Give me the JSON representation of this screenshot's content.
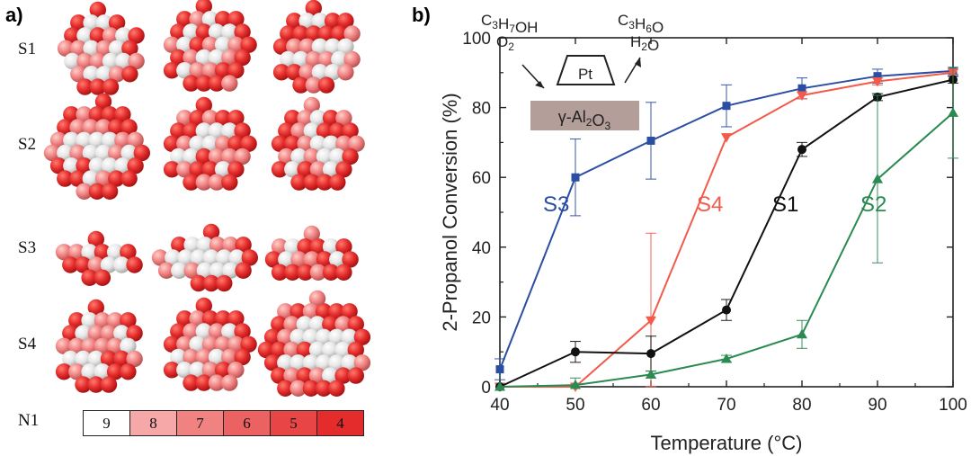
{
  "panel_a": {
    "label": "a)",
    "rows": [
      "S1",
      "S2",
      "S3",
      "S4"
    ],
    "legend_title": "N1",
    "legend": [
      {
        "value": "9",
        "color": "#ffffff"
      },
      {
        "value": "8",
        "color": "#f6a8a8"
      },
      {
        "value": "7",
        "color": "#f08282"
      },
      {
        "value": "6",
        "color": "#ec6262"
      },
      {
        "value": "5",
        "color": "#e84646"
      },
      {
        "value": "4",
        "color": "#e42c2c"
      }
    ]
  },
  "panel_b": {
    "label": "b)",
    "inset": {
      "reactants": [
        "C3H7OH",
        "O2"
      ],
      "products": [
        "C3H6O",
        "H2O"
      ],
      "catalyst": "Pt",
      "support": "γ-Al2O3"
    }
  },
  "chart_data": {
    "type": "line",
    "xlabel": "Temperature (°C)",
    "ylabel": "2-Propanol Conversion (%)",
    "x": [
      40,
      50,
      60,
      70,
      80,
      90,
      100
    ],
    "xlim": [
      40,
      100
    ],
    "ylim": [
      0,
      100
    ],
    "xticks": [
      40,
      50,
      60,
      70,
      80,
      90,
      100
    ],
    "yticks": [
      0,
      20,
      40,
      60,
      80,
      100
    ],
    "grid": false,
    "series": [
      {
        "name": "S3",
        "color": "#2b4ea3",
        "marker": "square",
        "values": [
          5,
          60,
          70.5,
          80.5,
          85.5,
          89,
          90.5
        ],
        "errors": [
          3,
          11,
          11,
          6,
          3,
          2,
          1
        ]
      },
      {
        "name": "S4",
        "color": "#f35a4a",
        "marker": "triangle-down",
        "values": [
          0,
          0,
          19,
          71.5,
          83.5,
          87.5,
          90
        ],
        "errors": [
          0,
          0,
          25,
          0,
          1,
          1,
          1
        ]
      },
      {
        "name": "S1",
        "color": "#111111",
        "marker": "circle",
        "values": [
          0,
          10,
          9.5,
          22,
          68,
          83,
          88
        ],
        "errors": [
          0,
          3,
          5,
          3,
          2,
          1,
          1
        ]
      },
      {
        "name": "S2",
        "color": "#2a8a52",
        "marker": "triangle-up",
        "values": [
          0,
          0.5,
          3.5,
          8,
          15,
          59.5,
          78.5
        ],
        "errors": [
          0,
          2,
          1,
          1,
          4,
          24,
          13
        ]
      }
    ]
  }
}
